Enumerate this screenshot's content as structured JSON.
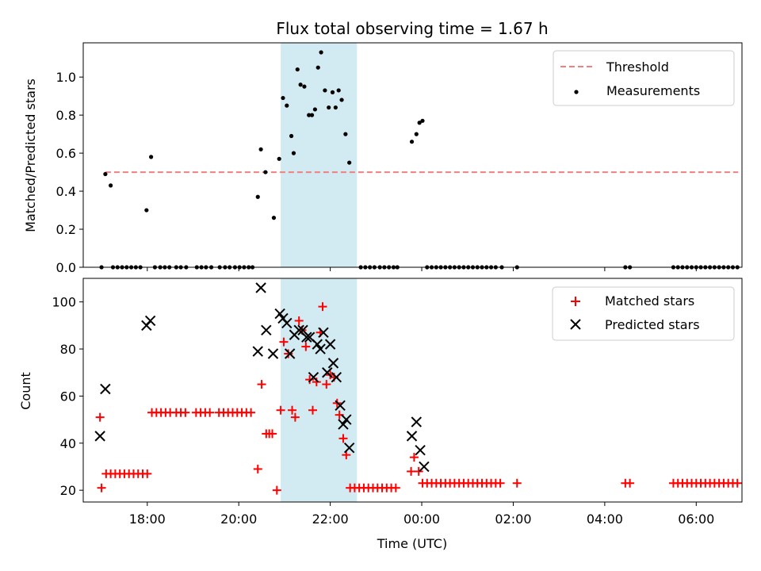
{
  "chart_data": [
    {
      "type": "scatter",
      "title": "Flux total observing time = 1.67 h",
      "xlabel": "",
      "ylabel": "Matched/Predicted stars",
      "ylim": [
        0,
        1.18
      ],
      "yticks": [
        "0.0",
        "0.2",
        "0.4",
        "0.6",
        "0.8",
        "1.0"
      ],
      "xlim_hours": [
        16.6,
        31.0
      ],
      "highlight_span": [
        "20:55",
        "22:35"
      ],
      "highlight_color": "#add8e6",
      "grid": false,
      "legend": "top-right",
      "threshold": {
        "name": "Threshold",
        "value": 0.5,
        "x_range": [
          "17:05",
          "06:55"
        ],
        "color": "#f08080"
      },
      "series": [
        {
          "name": "Measurements",
          "marker": "dot",
          "color": "#000000",
          "points": [
            [
              "17:00",
              0
            ],
            [
              "17:05",
              0.49
            ],
            [
              "17:12",
              0.43
            ],
            [
              "17:15",
              0
            ],
            [
              "17:21",
              0
            ],
            [
              "17:27",
              0
            ],
            [
              "17:33",
              0
            ],
            [
              "17:39",
              0
            ],
            [
              "17:45",
              0
            ],
            [
              "17:51",
              0
            ],
            [
              "17:59",
              0.3
            ],
            [
              "18:05",
              0.58
            ],
            [
              "18:10",
              0
            ],
            [
              "18:17",
              0
            ],
            [
              "18:23",
              0
            ],
            [
              "18:29",
              0
            ],
            [
              "18:38",
              0
            ],
            [
              "18:44",
              0
            ],
            [
              "18:51",
              0
            ],
            [
              "19:05",
              0
            ],
            [
              "19:11",
              0
            ],
            [
              "19:17",
              0
            ],
            [
              "19:24",
              0
            ],
            [
              "19:35",
              0
            ],
            [
              "19:42",
              0
            ],
            [
              "19:48",
              0
            ],
            [
              "19:55",
              0
            ],
            [
              "20:01",
              0
            ],
            [
              "20:07",
              0
            ],
            [
              "20:13",
              0
            ],
            [
              "20:18",
              0
            ],
            [
              "20:25",
              0.37
            ],
            [
              "20:29",
              0.62
            ],
            [
              "20:35",
              0.5
            ],
            [
              "20:46",
              0.26
            ],
            [
              "20:53",
              0.57
            ],
            [
              "20:58",
              0.89
            ],
            [
              "21:03",
              0.85
            ],
            [
              "21:09",
              0.69
            ],
            [
              "21:12",
              0.6
            ],
            [
              "21:17",
              1.04
            ],
            [
              "21:21",
              0.96
            ],
            [
              "21:26",
              0.95
            ],
            [
              "21:32",
              0.8
            ],
            [
              "21:36",
              0.8
            ],
            [
              "21:40",
              0.83
            ],
            [
              "21:44",
              1.05
            ],
            [
              "21:48",
              1.13
            ],
            [
              "21:53",
              0.93
            ],
            [
              "21:58",
              0.84
            ],
            [
              "22:03",
              0.92
            ],
            [
              "22:07",
              0.84
            ],
            [
              "22:11",
              0.93
            ],
            [
              "22:15",
              0.88
            ],
            [
              "22:20",
              0.7
            ],
            [
              "22:25",
              0.55
            ],
            [
              "22:40",
              0
            ],
            [
              "22:46",
              0
            ],
            [
              "22:52",
              0
            ],
            [
              "22:58",
              0
            ],
            [
              "23:05",
              0
            ],
            [
              "23:11",
              0
            ],
            [
              "23:17",
              0
            ],
            [
              "23:23",
              0
            ],
            [
              "23:28",
              0
            ],
            [
              "23:47",
              0.66
            ],
            [
              "23:53",
              0.7
            ],
            [
              "23:57",
              0.76
            ],
            [
              "00:01",
              0.77
            ],
            [
              "00:07",
              0
            ],
            [
              "00:13",
              0
            ],
            [
              "00:19",
              0
            ],
            [
              "00:25",
              0
            ],
            [
              "00:31",
              0
            ],
            [
              "00:37",
              0
            ],
            [
              "00:43",
              0
            ],
            [
              "00:49",
              0
            ],
            [
              "00:55",
              0
            ],
            [
              "01:01",
              0
            ],
            [
              "01:07",
              0
            ],
            [
              "01:13",
              0
            ],
            [
              "01:19",
              0
            ],
            [
              "01:25",
              0
            ],
            [
              "01:31",
              0
            ],
            [
              "01:37",
              0
            ],
            [
              "01:45",
              0
            ],
            [
              "02:05",
              0
            ],
            [
              "04:27",
              0
            ],
            [
              "04:33",
              0
            ],
            [
              "05:30",
              0
            ],
            [
              "05:36",
              0
            ],
            [
              "05:42",
              0
            ],
            [
              "05:48",
              0
            ],
            [
              "05:54",
              0
            ],
            [
              "06:00",
              0
            ],
            [
              "06:06",
              0
            ],
            [
              "06:12",
              0
            ],
            [
              "06:18",
              0
            ],
            [
              "06:24",
              0
            ],
            [
              "06:30",
              0
            ],
            [
              "06:36",
              0
            ],
            [
              "06:42",
              0
            ],
            [
              "06:48",
              0
            ],
            [
              "06:54",
              0
            ]
          ]
        }
      ]
    },
    {
      "type": "scatter",
      "title": "",
      "xlabel": "Time (UTC)",
      "ylabel": "Count",
      "ylim": [
        15,
        110
      ],
      "yticks": [
        "20",
        "40",
        "60",
        "80",
        "100"
      ],
      "xticks": [
        "18:00",
        "20:00",
        "22:00",
        "00:00",
        "02:00",
        "04:00",
        "06:00"
      ],
      "xlim_hours": [
        16.6,
        31.0
      ],
      "highlight_span": [
        "20:55",
        "22:35"
      ],
      "highlight_color": "#add8e6",
      "grid": false,
      "legend": "top-right",
      "series": [
        {
          "name": "Matched stars",
          "marker": "plus",
          "color": "#ff0000",
          "points": [
            [
              "16:58",
              51
            ],
            [
              "17:00",
              21
            ],
            [
              "17:06",
              27
            ],
            [
              "17:12",
              27
            ],
            [
              "17:18",
              27
            ],
            [
              "17:24",
              27
            ],
            [
              "17:30",
              27
            ],
            [
              "17:36",
              27
            ],
            [
              "17:42",
              27
            ],
            [
              "17:48",
              27
            ],
            [
              "17:54",
              27
            ],
            [
              "18:00",
              27
            ],
            [
              "18:06",
              53
            ],
            [
              "18:12",
              53
            ],
            [
              "18:18",
              53
            ],
            [
              "18:24",
              53
            ],
            [
              "18:30",
              53
            ],
            [
              "18:38",
              53
            ],
            [
              "18:44",
              53
            ],
            [
              "18:50",
              53
            ],
            [
              "19:04",
              53
            ],
            [
              "19:10",
              53
            ],
            [
              "19:16",
              53
            ],
            [
              "19:22",
              53
            ],
            [
              "19:34",
              53
            ],
            [
              "19:40",
              53
            ],
            [
              "19:46",
              53
            ],
            [
              "19:52",
              53
            ],
            [
              "19:58",
              53
            ],
            [
              "20:04",
              53
            ],
            [
              "20:10",
              53
            ],
            [
              "20:16",
              53
            ],
            [
              "20:25",
              29
            ],
            [
              "20:30",
              65
            ],
            [
              "20:36",
              44
            ],
            [
              "20:40",
              44
            ],
            [
              "20:44",
              44
            ],
            [
              "20:50",
              20
            ],
            [
              "20:55",
              54
            ],
            [
              "20:59",
              83
            ],
            [
              "21:05",
              78
            ],
            [
              "21:10",
              54
            ],
            [
              "21:14",
              51
            ],
            [
              "21:19",
              92
            ],
            [
              "21:23",
              88
            ],
            [
              "21:28",
              81
            ],
            [
              "21:33",
              67
            ],
            [
              "21:37",
              54
            ],
            [
              "21:42",
              66
            ],
            [
              "21:47",
              87
            ],
            [
              "21:50",
              98
            ],
            [
              "21:55",
              65
            ],
            [
              "22:00",
              69
            ],
            [
              "22:05",
              68
            ],
            [
              "22:09",
              57
            ],
            [
              "22:12",
              52
            ],
            [
              "22:17",
              42
            ],
            [
              "22:21",
              35
            ],
            [
              "22:26",
              21
            ],
            [
              "22:32",
              21
            ],
            [
              "22:38",
              21
            ],
            [
              "22:44",
              21
            ],
            [
              "22:50",
              21
            ],
            [
              "22:56",
              21
            ],
            [
              "23:02",
              21
            ],
            [
              "23:08",
              21
            ],
            [
              "23:14",
              21
            ],
            [
              "23:20",
              21
            ],
            [
              "23:26",
              21
            ],
            [
              "23:46",
              28
            ],
            [
              "23:50",
              34
            ],
            [
              "23:56",
              28
            ],
            [
              "00:01",
              23
            ],
            [
              "00:07",
              23
            ],
            [
              "00:13",
              23
            ],
            [
              "00:19",
              23
            ],
            [
              "00:25",
              23
            ],
            [
              "00:31",
              23
            ],
            [
              "00:37",
              23
            ],
            [
              "00:43",
              23
            ],
            [
              "00:49",
              23
            ],
            [
              "00:55",
              23
            ],
            [
              "01:01",
              23
            ],
            [
              "01:07",
              23
            ],
            [
              "01:13",
              23
            ],
            [
              "01:19",
              23
            ],
            [
              "01:25",
              23
            ],
            [
              "01:31",
              23
            ],
            [
              "01:37",
              23
            ],
            [
              "01:43",
              23
            ],
            [
              "02:05",
              23
            ],
            [
              "04:27",
              23
            ],
            [
              "04:33",
              23
            ],
            [
              "05:30",
              23
            ],
            [
              "05:36",
              23
            ],
            [
              "05:42",
              23
            ],
            [
              "05:48",
              23
            ],
            [
              "05:54",
              23
            ],
            [
              "06:00",
              23
            ],
            [
              "06:06",
              23
            ],
            [
              "06:12",
              23
            ],
            [
              "06:18",
              23
            ],
            [
              "06:24",
              23
            ],
            [
              "06:30",
              23
            ],
            [
              "06:36",
              23
            ],
            [
              "06:42",
              23
            ],
            [
              "06:48",
              23
            ],
            [
              "06:54",
              23
            ]
          ]
        },
        {
          "name": "Predicted stars",
          "marker": "x",
          "color": "#000000",
          "points": [
            [
              "16:58",
              43
            ],
            [
              "17:05",
              63
            ],
            [
              "17:59",
              90
            ],
            [
              "18:04",
              92
            ],
            [
              "20:25",
              79
            ],
            [
              "20:29",
              106
            ],
            [
              "20:36",
              88
            ],
            [
              "20:45",
              78
            ],
            [
              "20:54",
              95
            ],
            [
              "20:58",
              93
            ],
            [
              "21:03",
              91
            ],
            [
              "21:07",
              78
            ],
            [
              "21:13",
              86
            ],
            [
              "21:19",
              88
            ],
            [
              "21:24",
              88
            ],
            [
              "21:29",
              85
            ],
            [
              "21:33",
              85
            ],
            [
              "21:38",
              68
            ],
            [
              "21:43",
              82
            ],
            [
              "21:47",
              80
            ],
            [
              "21:51",
              87
            ],
            [
              "21:56",
              70
            ],
            [
              "22:00",
              82
            ],
            [
              "22:04",
              74
            ],
            [
              "22:08",
              68
            ],
            [
              "22:13",
              56
            ],
            [
              "22:17",
              48
            ],
            [
              "22:21",
              50
            ],
            [
              "22:25",
              38
            ],
            [
              "23:47",
              43
            ],
            [
              "23:53",
              49
            ],
            [
              "23:58",
              37
            ],
            [
              "00:03",
              30
            ]
          ]
        }
      ]
    }
  ]
}
